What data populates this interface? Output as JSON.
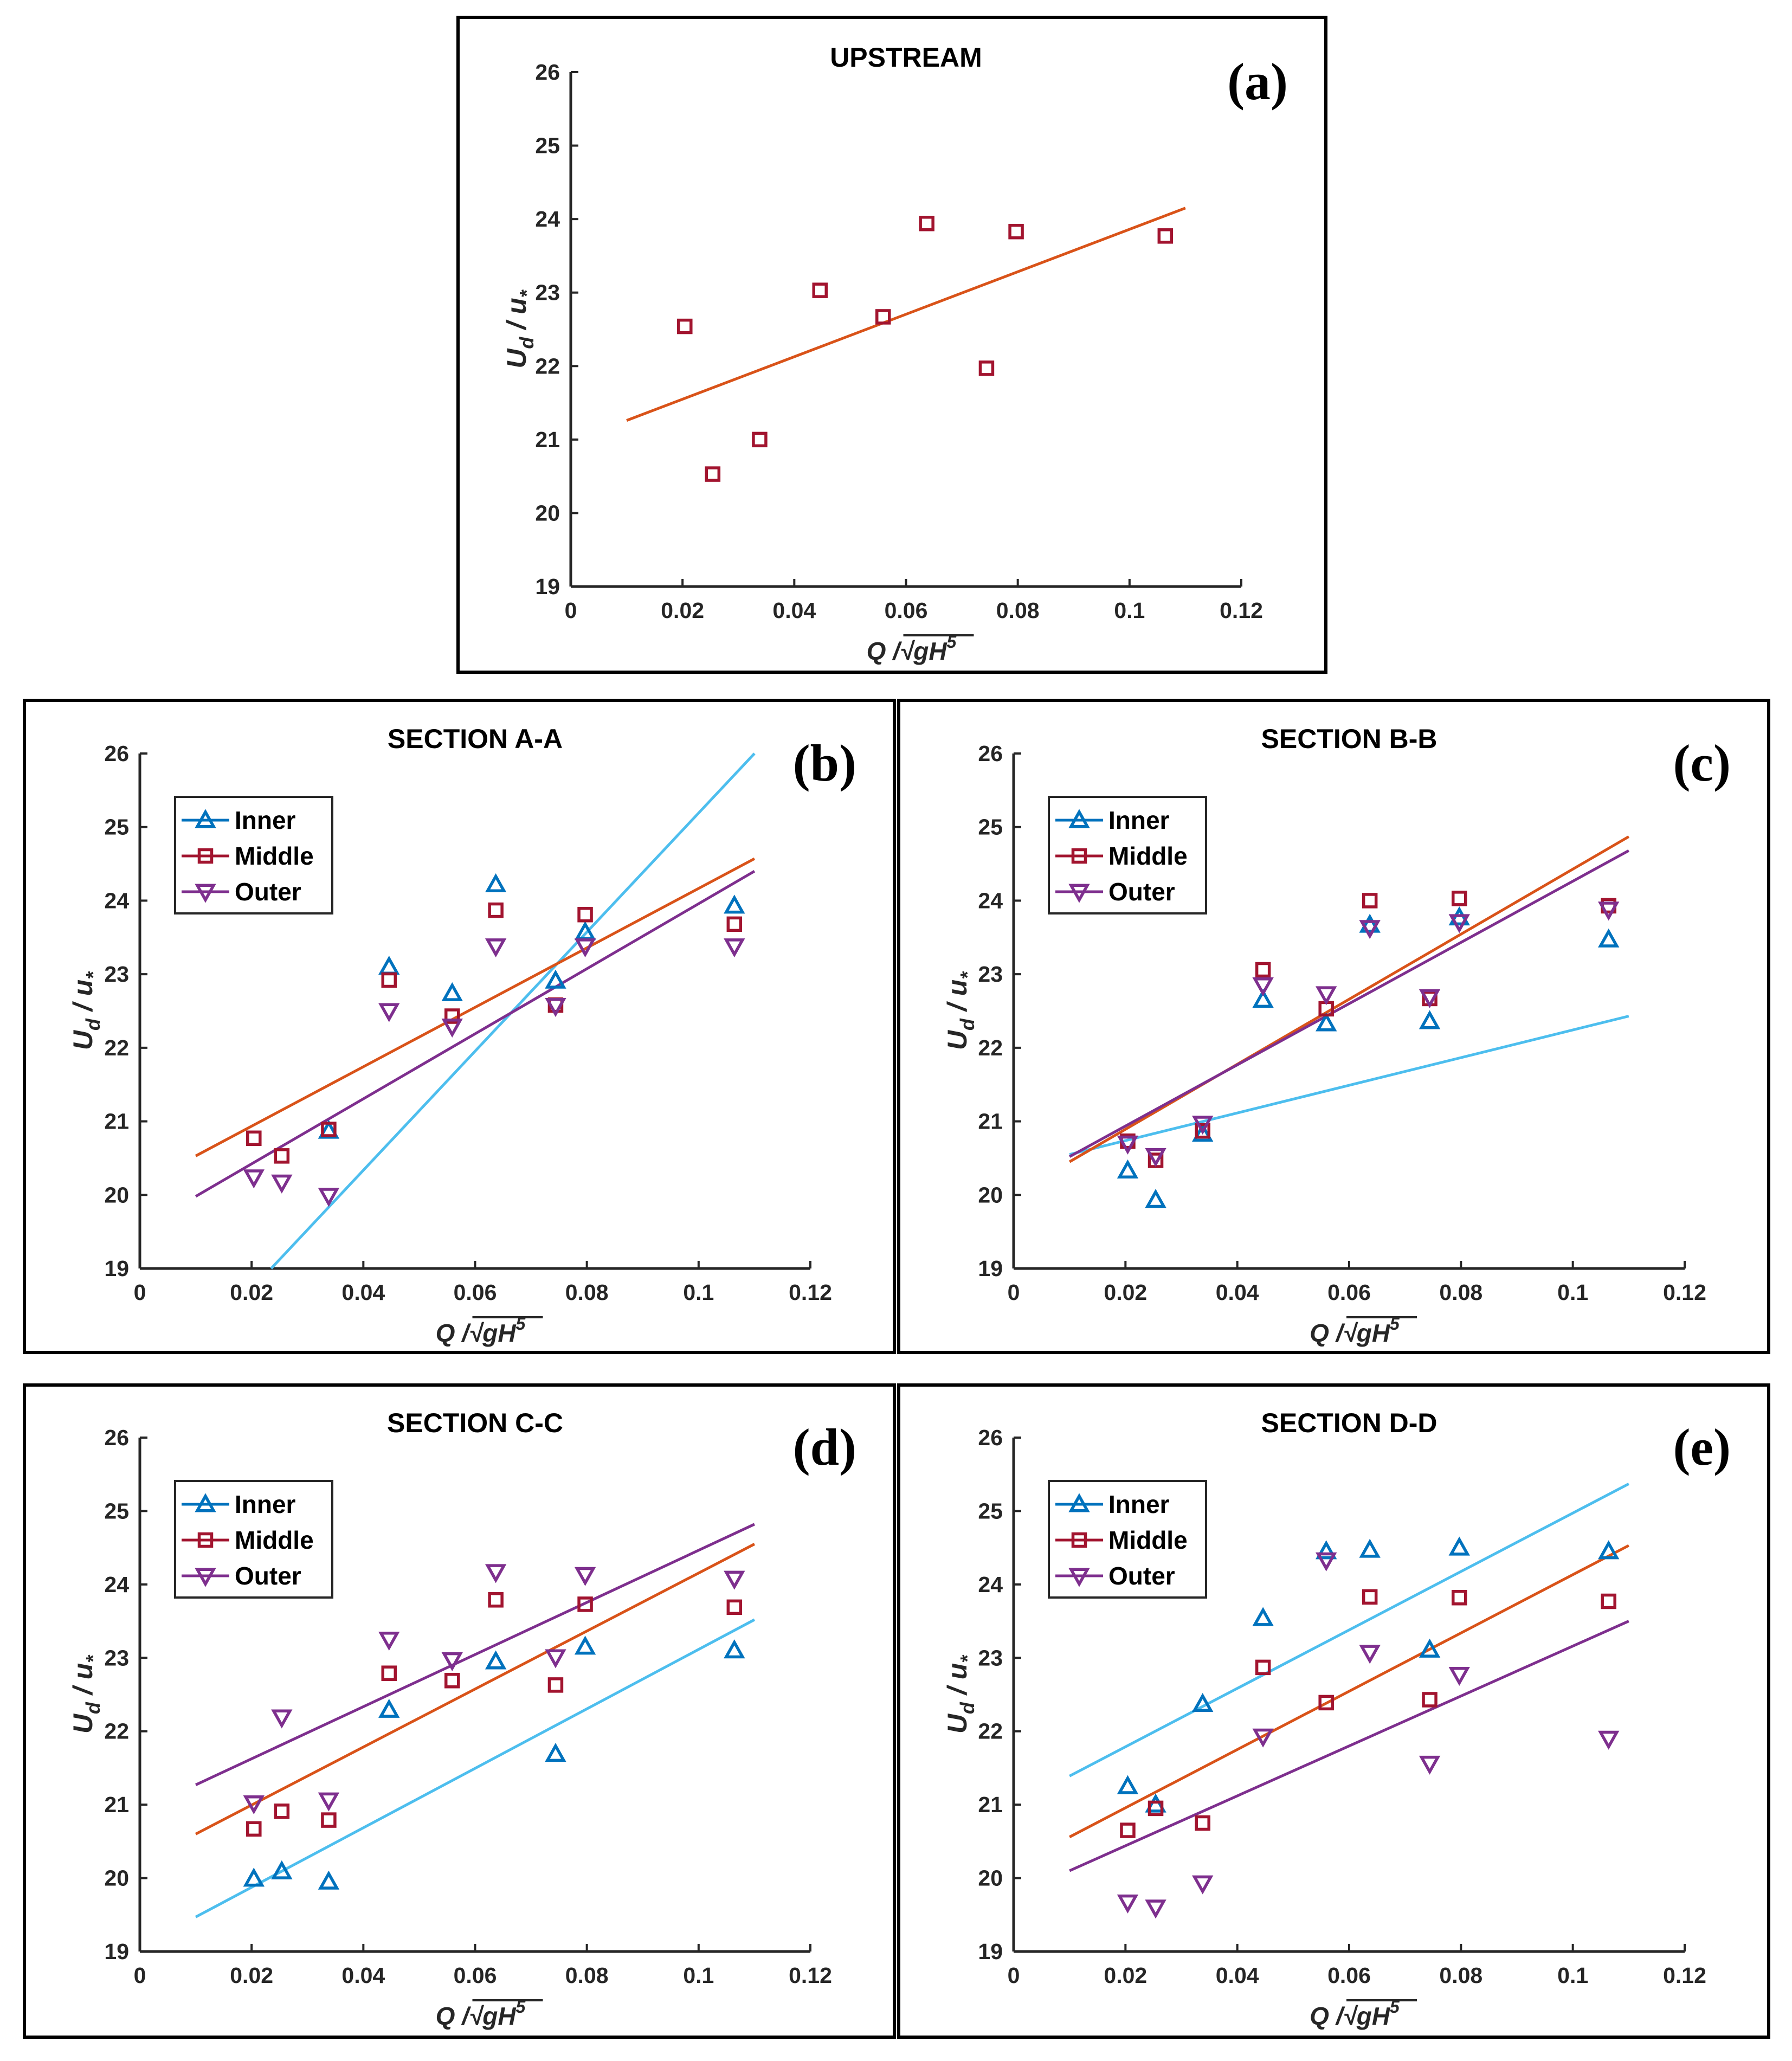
{
  "colors": {
    "inner": "#0072BD",
    "middle": "#A2142F",
    "outer": "#7E2F8E",
    "middle_fit": "#D95319",
    "inner_fit": "#4DBEEE"
  },
  "shared_axes": {
    "xlabel": "Q /√gH",
    "xlabel_sup": "5",
    "ylabel_main": "U",
    "ylabel_sub1": "d",
    "ylabel_mid": " / u",
    "ylabel_sub2": "*",
    "xlim": [
      0,
      0.12
    ],
    "ylim": [
      19,
      26
    ],
    "xticks": [
      "0",
      "0.02",
      "0.04",
      "0.06",
      "0.08",
      "0.1",
      "0.12"
    ],
    "yticks": [
      "19",
      "20",
      "21",
      "22",
      "23",
      "24",
      "25",
      "26"
    ]
  },
  "chart_data": [
    {
      "type": "scatter",
      "panel": "(a)",
      "title": "UPSTREAM",
      "legend": false,
      "x": [
        0.0204,
        0.0254,
        0.0338,
        0.0446,
        0.0559,
        0.0637,
        0.0744,
        0.0797,
        0.1064
      ],
      "series": [
        {
          "name": "Middle",
          "marker": "square",
          "values": [
            22.54,
            20.53,
            21.0,
            23.03,
            22.67,
            23.94,
            21.97,
            23.83,
            23.77
          ]
        }
      ],
      "fits": [
        {
          "name": "Middle",
          "x": [
            0.01,
            0.11
          ],
          "y": [
            21.26,
            24.15
          ],
          "color": "middle_fit"
        }
      ]
    },
    {
      "type": "scatter",
      "panel": "(b)",
      "title": "SECTION A-A",
      "legend": true,
      "x": [
        0.0204,
        0.0254,
        0.0338,
        0.0446,
        0.0559,
        0.0637,
        0.0744,
        0.0797,
        0.1064
      ],
      "series": [
        {
          "name": "Inner",
          "marker": "triangle-up",
          "values": [
            null,
            null,
            20.87,
            23.1,
            22.74,
            24.22,
            22.91,
            23.57,
            23.93
          ]
        },
        {
          "name": "Middle",
          "marker": "square",
          "values": [
            20.77,
            20.53,
            20.89,
            22.92,
            22.43,
            23.87,
            22.58,
            23.81,
            23.68
          ]
        },
        {
          "name": "Outer",
          "marker": "triangle-down",
          "values": [
            20.24,
            20.17,
            19.99,
            22.5,
            22.29,
            23.38,
            22.57,
            23.38,
            23.38
          ]
        }
      ],
      "fits": [
        {
          "name": "Inner",
          "x": [
            0.0235,
            0.11
          ],
          "y": [
            19.0,
            26.0
          ],
          "color": "inner_fit"
        },
        {
          "name": "Middle",
          "x": [
            0.01,
            0.11
          ],
          "y": [
            20.53,
            24.57
          ],
          "color": "middle_fit"
        },
        {
          "name": "Outer",
          "x": [
            0.01,
            0.11
          ],
          "y": [
            19.98,
            24.4
          ],
          "color": "outer"
        }
      ]
    },
    {
      "type": "scatter",
      "panel": "(c)",
      "title": "SECTION B-B",
      "legend": true,
      "x": [
        0.0204,
        0.0254,
        0.0338,
        0.0446,
        0.0559,
        0.0637,
        0.0744,
        0.0797,
        0.1064
      ],
      "series": [
        {
          "name": "Inner",
          "marker": "triangle-up",
          "values": [
            20.33,
            19.93,
            20.83,
            22.65,
            22.33,
            23.67,
            22.36,
            23.77,
            23.47
          ]
        },
        {
          "name": "Middle",
          "marker": "square",
          "values": [
            20.73,
            20.47,
            20.87,
            23.06,
            22.53,
            24.0,
            22.67,
            24.03,
            23.93
          ]
        },
        {
          "name": "Outer",
          "marker": "triangle-down",
          "values": [
            20.7,
            20.53,
            20.97,
            22.85,
            22.73,
            23.63,
            22.69,
            23.71,
            23.88
          ]
        }
      ],
      "fits": [
        {
          "name": "Inner",
          "x": [
            0.01,
            0.11
          ],
          "y": [
            20.55,
            22.43
          ],
          "color": "inner_fit"
        },
        {
          "name": "Middle",
          "x": [
            0.01,
            0.11
          ],
          "y": [
            20.45,
            24.87
          ],
          "color": "middle_fit"
        },
        {
          "name": "Outer",
          "x": [
            0.01,
            0.11
          ],
          "y": [
            20.52,
            24.68
          ],
          "color": "outer"
        }
      ]
    },
    {
      "type": "scatter",
      "panel": "(d)",
      "title": "SECTION C-C",
      "legend": true,
      "x": [
        0.0204,
        0.0254,
        0.0338,
        0.0446,
        0.0559,
        0.0637,
        0.0744,
        0.0797,
        0.1064
      ],
      "series": [
        {
          "name": "Inner",
          "marker": "triangle-up",
          "values": [
            19.99,
            20.09,
            19.95,
            22.29,
            null,
            22.95,
            21.69,
            23.15,
            23.1
          ]
        },
        {
          "name": "Middle",
          "marker": "square",
          "values": [
            20.67,
            20.91,
            20.79,
            22.79,
            22.69,
            23.79,
            22.63,
            23.73,
            23.69
          ]
        },
        {
          "name": "Outer",
          "marker": "triangle-down",
          "values": [
            21.02,
            22.19,
            21.06,
            23.25,
            22.97,
            24.17,
            23.01,
            24.13,
            24.08
          ]
        }
      ],
      "fits": [
        {
          "name": "Inner",
          "x": [
            0.01,
            0.11
          ],
          "y": [
            19.47,
            23.52
          ],
          "color": "inner_fit"
        },
        {
          "name": "Middle",
          "x": [
            0.01,
            0.11
          ],
          "y": [
            20.6,
            24.55
          ],
          "color": "middle_fit"
        },
        {
          "name": "Outer",
          "x": [
            0.01,
            0.11
          ],
          "y": [
            21.27,
            24.82
          ],
          "color": "outer"
        }
      ]
    },
    {
      "type": "scatter",
      "panel": "(e)",
      "title": "SECTION D-D",
      "legend": true,
      "x": [
        0.0204,
        0.0254,
        0.0338,
        0.0446,
        0.0559,
        0.0637,
        0.0744,
        0.0797,
        0.1064
      ],
      "series": [
        {
          "name": "Inner",
          "marker": "triangle-up",
          "values": [
            21.25,
            21.0,
            22.37,
            23.54,
            24.45,
            24.47,
            23.11,
            24.5,
            24.45
          ]
        },
        {
          "name": "Middle",
          "marker": "square",
          "values": [
            20.65,
            20.95,
            20.75,
            22.87,
            22.39,
            23.83,
            22.43,
            23.82,
            23.77
          ]
        },
        {
          "name": "Outer",
          "marker": "triangle-down",
          "values": [
            19.67,
            19.6,
            19.93,
            21.93,
            24.33,
            23.07,
            21.56,
            22.77,
            21.9
          ]
        }
      ],
      "fits": [
        {
          "name": "Inner",
          "x": [
            0.01,
            0.11
          ],
          "y": [
            21.39,
            25.37
          ],
          "color": "inner_fit"
        },
        {
          "name": "Middle",
          "x": [
            0.01,
            0.11
          ],
          "y": [
            20.56,
            24.53
          ],
          "color": "middle_fit"
        },
        {
          "name": "Outer",
          "x": [
            0.01,
            0.11
          ],
          "y": [
            20.1,
            23.5
          ],
          "color": "outer"
        }
      ]
    }
  ]
}
